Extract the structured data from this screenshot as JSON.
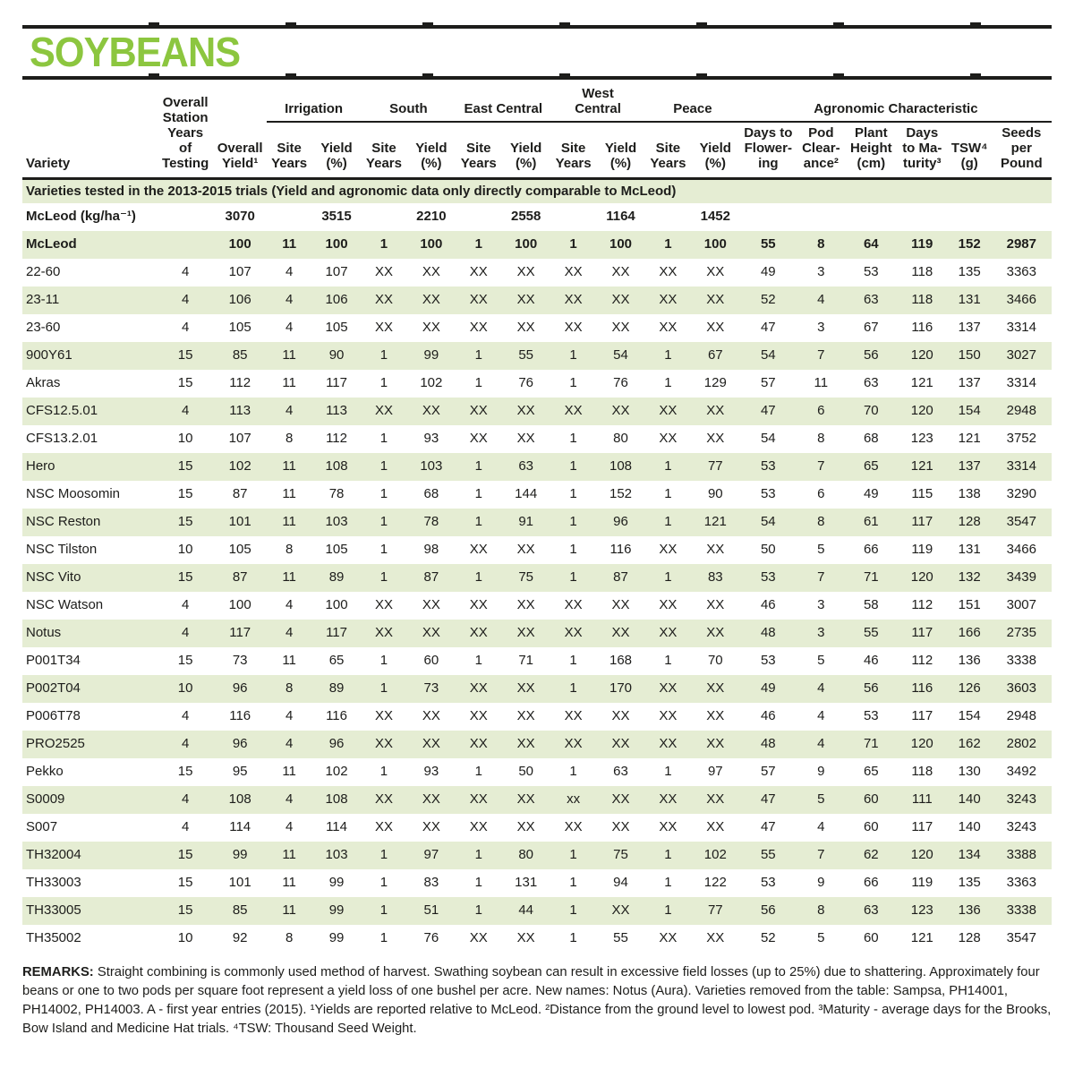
{
  "title": "SOYBEANS",
  "colors": {
    "accent_green": "#8CC63F",
    "row_stripe_green": "#E5EDD3",
    "text_black": "#1D1D1B"
  },
  "table": {
    "group_headers": {
      "irrigation": "Irrigation",
      "south": "South",
      "east_central": "East Central",
      "west_central": "West\nCentral",
      "peace": "Peace",
      "agronomic": "Agronomic Characteristic"
    },
    "column_headers": {
      "variety": "Variety",
      "station_years": "Overall\nStation\nYears\nof\nTesting",
      "overall_yield": "Overall\nYield¹",
      "site_years": "Site\nYears",
      "yield_pct": "Yield\n(%)",
      "days_to_flowering": "Days to\nFlower-\ning",
      "pod_clearance": "Pod\nClear-\nance²",
      "plant_height": "Plant\nHeight\n(cm)",
      "days_to_maturity": "Days\nto Ma-\nturity³",
      "tsw": "TSW⁴\n(g)",
      "seeds_per_pound": "Seeds\nper\nPound"
    },
    "banner": "Varieties tested in the 2013-2015 trials (Yield and agronomic data only directly comparable to McLeod)",
    "rows": [
      {
        "variety": "McLeod (kg/ha⁻¹)",
        "bold": true,
        "name": "reference-yield-row",
        "values": [
          "",
          "3070",
          "",
          "3515",
          "",
          "2210",
          "",
          "2558",
          "",
          "1164",
          "",
          "1452",
          "",
          "",
          "",
          "",
          "",
          ""
        ]
      },
      {
        "variety": "McLeod",
        "bold": true,
        "values": [
          "",
          "100",
          "11",
          "100",
          "1",
          "100",
          "1",
          "100",
          "1",
          "100",
          "1",
          "100",
          "55",
          "8",
          "64",
          "119",
          "152",
          "2987"
        ]
      },
      {
        "variety": "22-60",
        "values": [
          "4",
          "107",
          "4",
          "107",
          "XX",
          "XX",
          "XX",
          "XX",
          "XX",
          "XX",
          "XX",
          "XX",
          "49",
          "3",
          "53",
          "118",
          "135",
          "3363"
        ]
      },
      {
        "variety": "23-11",
        "values": [
          "4",
          "106",
          "4",
          "106",
          "XX",
          "XX",
          "XX",
          "XX",
          "XX",
          "XX",
          "XX",
          "XX",
          "52",
          "4",
          "63",
          "118",
          "131",
          "3466"
        ]
      },
      {
        "variety": "23-60",
        "values": [
          "4",
          "105",
          "4",
          "105",
          "XX",
          "XX",
          "XX",
          "XX",
          "XX",
          "XX",
          "XX",
          "XX",
          "47",
          "3",
          "67",
          "116",
          "137",
          "3314"
        ]
      },
      {
        "variety": "900Y61",
        "values": [
          "15",
          "85",
          "11",
          "90",
          "1",
          "99",
          "1",
          "55",
          "1",
          "54",
          "1",
          "67",
          "54",
          "7",
          "56",
          "120",
          "150",
          "3027"
        ]
      },
      {
        "variety": "Akras",
        "values": [
          "15",
          "112",
          "11",
          "117",
          "1",
          "102",
          "1",
          "76",
          "1",
          "76",
          "1",
          "129",
          "57",
          "11",
          "63",
          "121",
          "137",
          "3314"
        ]
      },
      {
        "variety": "CFS12.5.01",
        "values": [
          "4",
          "113",
          "4",
          "113",
          "XX",
          "XX",
          "XX",
          "XX",
          "XX",
          "XX",
          "XX",
          "XX",
          "47",
          "6",
          "70",
          "120",
          "154",
          "2948"
        ]
      },
      {
        "variety": "CFS13.2.01",
        "values": [
          "10",
          "107",
          "8",
          "112",
          "1",
          "93",
          "XX",
          "XX",
          "1",
          "80",
          "XX",
          "XX",
          "54",
          "8",
          "68",
          "123",
          "121",
          "3752"
        ]
      },
      {
        "variety": "Hero",
        "values": [
          "15",
          "102",
          "11",
          "108",
          "1",
          "103",
          "1",
          "63",
          "1",
          "108",
          "1",
          "77",
          "53",
          "7",
          "65",
          "121",
          "137",
          "3314"
        ]
      },
      {
        "variety": "NSC Moosomin",
        "values": [
          "15",
          "87",
          "11",
          "78",
          "1",
          "68",
          "1",
          "144",
          "1",
          "152",
          "1",
          "90",
          "53",
          "6",
          "49",
          "115",
          "138",
          "3290"
        ]
      },
      {
        "variety": "NSC Reston",
        "values": [
          "15",
          "101",
          "11",
          "103",
          "1",
          "78",
          "1",
          "91",
          "1",
          "96",
          "1",
          "121",
          "54",
          "8",
          "61",
          "117",
          "128",
          "3547"
        ]
      },
      {
        "variety": "NSC Tilston",
        "values": [
          "10",
          "105",
          "8",
          "105",
          "1",
          "98",
          "XX",
          "XX",
          "1",
          "116",
          "XX",
          "XX",
          "50",
          "5",
          "66",
          "119",
          "131",
          "3466"
        ]
      },
      {
        "variety": "NSC Vito",
        "values": [
          "15",
          "87",
          "11",
          "89",
          "1",
          "87",
          "1",
          "75",
          "1",
          "87",
          "1",
          "83",
          "53",
          "7",
          "71",
          "120",
          "132",
          "3439"
        ]
      },
      {
        "variety": "NSC Watson",
        "values": [
          "4",
          "100",
          "4",
          "100",
          "XX",
          "XX",
          "XX",
          "XX",
          "XX",
          "XX",
          "XX",
          "XX",
          "46",
          "3",
          "58",
          "112",
          "151",
          "3007"
        ]
      },
      {
        "variety": "Notus",
        "values": [
          "4",
          "117",
          "4",
          "117",
          "XX",
          "XX",
          "XX",
          "XX",
          "XX",
          "XX",
          "XX",
          "XX",
          "48",
          "3",
          "55",
          "117",
          "166",
          "2735"
        ]
      },
      {
        "variety": "P001T34",
        "values": [
          "15",
          "73",
          "11",
          "65",
          "1",
          "60",
          "1",
          "71",
          "1",
          "168",
          "1",
          "70",
          "53",
          "5",
          "46",
          "112",
          "136",
          "3338"
        ]
      },
      {
        "variety": "P002T04",
        "values": [
          "10",
          "96",
          "8",
          "89",
          "1",
          "73",
          "XX",
          "XX",
          "1",
          "170",
          "XX",
          "XX",
          "49",
          "4",
          "56",
          "116",
          "126",
          "3603"
        ]
      },
      {
        "variety": "P006T78",
        "values": [
          "4",
          "116",
          "4",
          "116",
          "XX",
          "XX",
          "XX",
          "XX",
          "XX",
          "XX",
          "XX",
          "XX",
          "46",
          "4",
          "53",
          "117",
          "154",
          "2948"
        ]
      },
      {
        "variety": "PRO2525",
        "values": [
          "4",
          "96",
          "4",
          "96",
          "XX",
          "XX",
          "XX",
          "XX",
          "XX",
          "XX",
          "XX",
          "XX",
          "48",
          "4",
          "71",
          "120",
          "162",
          "2802"
        ]
      },
      {
        "variety": "Pekko",
        "values": [
          "15",
          "95",
          "11",
          "102",
          "1",
          "93",
          "1",
          "50",
          "1",
          "63",
          "1",
          "97",
          "57",
          "9",
          "65",
          "118",
          "130",
          "3492"
        ]
      },
      {
        "variety": "S0009",
        "values": [
          "4",
          "108",
          "4",
          "108",
          "XX",
          "XX",
          "XX",
          "XX",
          "xx",
          "XX",
          "XX",
          "XX",
          "47",
          "5",
          "60",
          "111",
          "140",
          "3243"
        ]
      },
      {
        "variety": "S007",
        "values": [
          "4",
          "114",
          "4",
          "114",
          "XX",
          "XX",
          "XX",
          "XX",
          "XX",
          "XX",
          "XX",
          "XX",
          "47",
          "4",
          "60",
          "117",
          "140",
          "3243"
        ]
      },
      {
        "variety": "TH32004",
        "values": [
          "15",
          "99",
          "11",
          "103",
          "1",
          "97",
          "1",
          "80",
          "1",
          "75",
          "1",
          "102",
          "55",
          "7",
          "62",
          "120",
          "134",
          "3388"
        ]
      },
      {
        "variety": "TH33003",
        "values": [
          "15",
          "101",
          "11",
          "99",
          "1",
          "83",
          "1",
          "131",
          "1",
          "94",
          "1",
          "122",
          "53",
          "9",
          "66",
          "119",
          "135",
          "3363"
        ]
      },
      {
        "variety": "TH33005",
        "values": [
          "15",
          "85",
          "11",
          "99",
          "1",
          "51",
          "1",
          "44",
          "1",
          "XX",
          "1",
          "77",
          "56",
          "8",
          "63",
          "123",
          "136",
          "3338"
        ]
      },
      {
        "variety": "TH35002",
        "values": [
          "10",
          "92",
          "8",
          "99",
          "1",
          "76",
          "XX",
          "XX",
          "1",
          "55",
          "XX",
          "XX",
          "52",
          "5",
          "60",
          "121",
          "128",
          "3547"
        ]
      }
    ]
  },
  "remarks": {
    "label": "REMARKS:",
    "text": "Straight combining is commonly used method of harvest. Swathing soybean can result in excessive field losses (up to 25%) due to shattering. Approximately four beans or one to two pods per square foot represent a yield loss of one bushel per acre. New names: Notus (Aura). Varieties removed from the table: Sampsa, PH14001, PH14002, PH14003. A - first year entries (2015). ¹Yields are reported relative to McLeod. ²Distance from the ground level to lowest pod. ³Maturity - average days for the Brooks, Bow Island and Medicine Hat trials. ⁴TSW: Thousand Seed Weight."
  }
}
